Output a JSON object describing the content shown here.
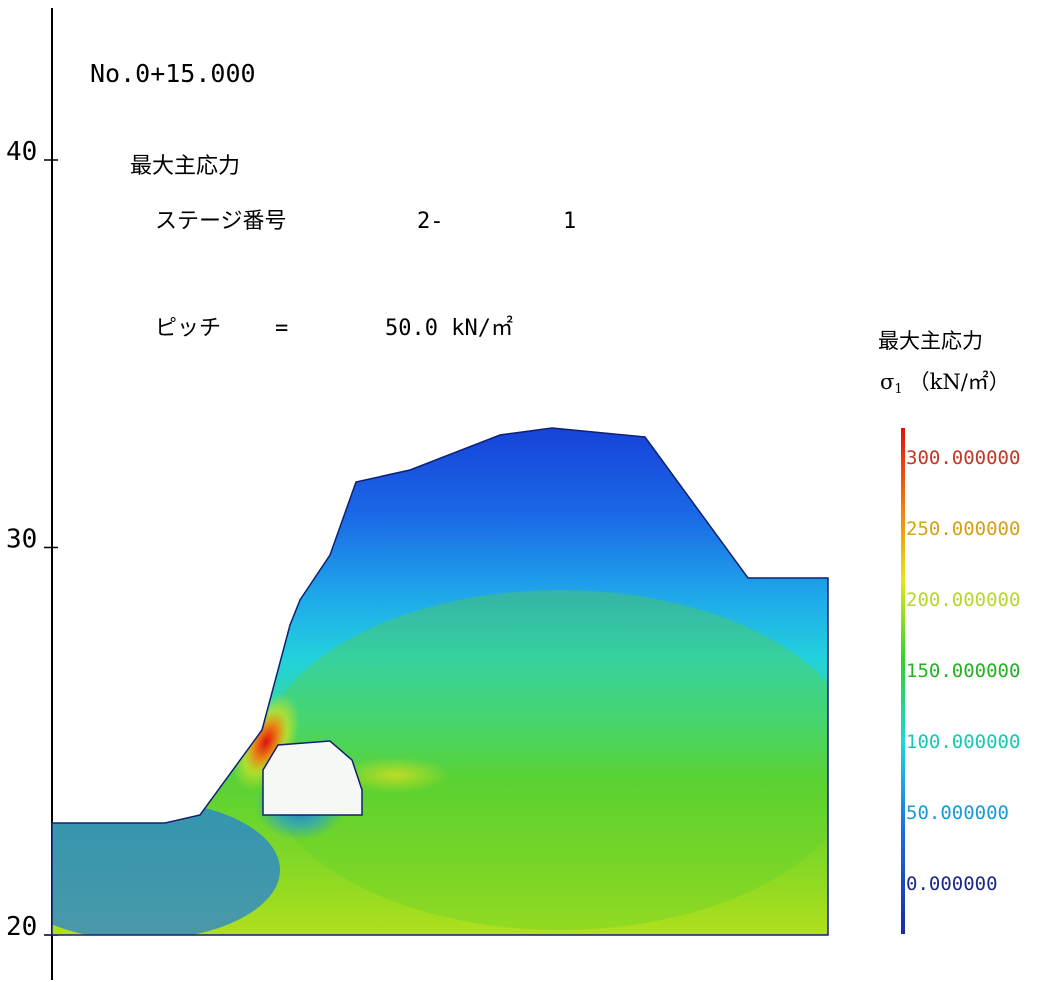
{
  "header": {
    "station": "No.0+15.000",
    "title": "最大主応力",
    "stage_label": "ステージ番号",
    "stage_major": "2-",
    "stage_minor": "1",
    "pitch_label": "ピッチ",
    "pitch_eq": "=",
    "pitch_value": "50.0 kN/㎡"
  },
  "axis": {
    "y_ticks": [
      {
        "value": 40,
        "label": "40"
      },
      {
        "value": 30,
        "label": "30"
      },
      {
        "value": 20,
        "label": "20"
      }
    ]
  },
  "legend": {
    "title": "最大主応力",
    "symbol": "σ",
    "subscript": "1",
    "unit": "（kN/㎡）",
    "levels": [
      {
        "label": "300.000000",
        "color": "#c0392b"
      },
      {
        "label": "250.000000",
        "color": "#d4a017"
      },
      {
        "label": "200.000000",
        "color": "#b5d92a"
      },
      {
        "label": "150.000000",
        "color": "#22b322"
      },
      {
        "label": "100.000000",
        "color": "#19c7b5"
      },
      {
        "label": "50.000000",
        "color": "#1a9bd6"
      },
      {
        "label": "0.000000",
        "color": "#1b2a8a"
      }
    ]
  },
  "colors": {
    "max": "#e01010",
    "high": "#f07a10",
    "upper": "#e6e619",
    "mid": "#5fd22a",
    "low": "#20d6d6",
    "lower": "#1e7ae6",
    "min": "#1535d6"
  }
}
